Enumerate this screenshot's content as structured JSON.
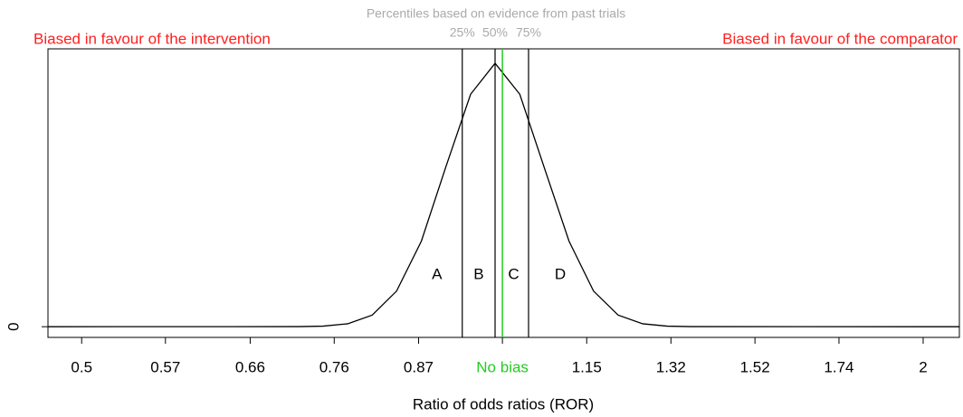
{
  "chart_data": {
    "type": "line",
    "xlabel": "Ratio of odds ratios (ROR)",
    "log_x": true,
    "color": "#000000",
    "x": [
      0.473,
      0.715,
      0.744,
      0.775,
      0.807,
      0.84,
      0.875,
      0.911,
      0.949,
      0.988,
      1.029,
      1.071,
      1.116,
      1.162,
      1.21,
      1.26,
      1.312,
      1.366,
      2.123
    ],
    "values": [
      0,
      0.0017,
      0.0108,
      0.0548,
      0.217,
      0.667,
      1.601,
      2.99,
      4.351,
      4.93,
      4.351,
      2.99,
      1.601,
      0.667,
      0.217,
      0.0548,
      0.0108,
      0.0017,
      0
    ],
    "xlim": [
      0.473,
      2.123
    ],
    "ylim": [
      -0.2,
      5.2
    ],
    "xticks": [
      {
        "value": 0.5,
        "label": "0.5"
      },
      {
        "value": 0.574,
        "label": "0.57"
      },
      {
        "value": 0.66,
        "label": "0.66"
      },
      {
        "value": 0.758,
        "label": "0.76"
      },
      {
        "value": 0.871,
        "label": "0.87"
      },
      {
        "value": 1,
        "label": "No bias"
      },
      {
        "value": 1.149,
        "label": "1.15"
      },
      {
        "value": 1.32,
        "label": "1.32"
      },
      {
        "value": 1.516,
        "label": "1.52"
      },
      {
        "value": 1.741,
        "label": "1.74"
      },
      {
        "value": 2,
        "label": "2"
      }
    ],
    "yticks": [
      0
    ],
    "no_bias_tick": 5,
    "no_bias_color": "#22cc22",
    "percentiles": {
      "title": "Percentiles based on evidence from past trials",
      "values": [
        0.936,
        0.988,
        1.044
      ],
      "labels": [
        "25%",
        "50%",
        "75%"
      ],
      "color": "#aaaaaa"
    },
    "region_labels": [
      "A",
      "B",
      "C",
      "D"
    ],
    "left_note": "Biased in favour of the intervention",
    "right_note": "Biased in favour of the comparator",
    "note_color": "#ff2020"
  }
}
